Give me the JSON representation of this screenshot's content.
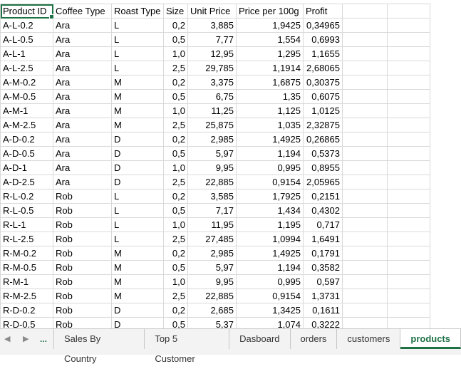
{
  "sheet": {
    "headers": [
      "Product ID",
      "Coffee Type",
      "Roast Type",
      "Size",
      "Unit Price",
      "Price per 100g",
      "Profit"
    ],
    "rows": [
      [
        "A-L-0.2",
        "Ara",
        "L",
        "0,2",
        "3,885",
        "1,9425",
        "0,34965"
      ],
      [
        "A-L-0.5",
        "Ara",
        "L",
        "0,5",
        "7,77",
        "1,554",
        "0,6993"
      ],
      [
        "A-L-1",
        "Ara",
        "L",
        "1,0",
        "12,95",
        "1,295",
        "1,1655"
      ],
      [
        "A-L-2.5",
        "Ara",
        "L",
        "2,5",
        "29,785",
        "1,1914",
        "2,68065"
      ],
      [
        "A-M-0.2",
        "Ara",
        "M",
        "0,2",
        "3,375",
        "1,6875",
        "0,30375"
      ],
      [
        "A-M-0.5",
        "Ara",
        "M",
        "0,5",
        "6,75",
        "1,35",
        "0,6075"
      ],
      [
        "A-M-1",
        "Ara",
        "M",
        "1,0",
        "11,25",
        "1,125",
        "1,0125"
      ],
      [
        "A-M-2.5",
        "Ara",
        "M",
        "2,5",
        "25,875",
        "1,035",
        "2,32875"
      ],
      [
        "A-D-0.2",
        "Ara",
        "D",
        "0,2",
        "2,985",
        "1,4925",
        "0,26865"
      ],
      [
        "A-D-0.5",
        "Ara",
        "D",
        "0,5",
        "5,97",
        "1,194",
        "0,5373"
      ],
      [
        "A-D-1",
        "Ara",
        "D",
        "1,0",
        "9,95",
        "0,995",
        "0,8955"
      ],
      [
        "A-D-2.5",
        "Ara",
        "D",
        "2,5",
        "22,885",
        "0,9154",
        "2,05965"
      ],
      [
        "R-L-0.2",
        "Rob",
        "L",
        "0,2",
        "3,585",
        "1,7925",
        "0,2151"
      ],
      [
        "R-L-0.5",
        "Rob",
        "L",
        "0,5",
        "7,17",
        "1,434",
        "0,4302"
      ],
      [
        "R-L-1",
        "Rob",
        "L",
        "1,0",
        "11,95",
        "1,195",
        "0,717"
      ],
      [
        "R-L-2.5",
        "Rob",
        "L",
        "2,5",
        "27,485",
        "1,0994",
        "1,6491"
      ],
      [
        "R-M-0.2",
        "Rob",
        "M",
        "0,2",
        "2,985",
        "1,4925",
        "0,1791"
      ],
      [
        "R-M-0.5",
        "Rob",
        "M",
        "0,5",
        "5,97",
        "1,194",
        "0,3582"
      ],
      [
        "R-M-1",
        "Rob",
        "M",
        "1,0",
        "9,95",
        "0,995",
        "0,597"
      ],
      [
        "R-M-2.5",
        "Rob",
        "M",
        "2,5",
        "22,885",
        "0,9154",
        "1,3731"
      ],
      [
        "R-D-0.2",
        "Rob",
        "D",
        "0,2",
        "2,685",
        "1,3425",
        "0,1611"
      ],
      [
        "R-D-0.5",
        "Rob",
        "D",
        "0,5",
        "5,37",
        "1,074",
        "0,3222"
      ]
    ]
  },
  "tabbar": {
    "prev_icon": "◀",
    "next_icon": "▶",
    "ellipsis": "...",
    "tabs": [
      "Sales By Country",
      "Top 5 Customer",
      "Dasboard",
      "orders",
      "customers",
      "products"
    ],
    "active_tab": "products"
  },
  "colors": {
    "accent": "#1e7145",
    "grid": "#d9d9d9",
    "tabbar_bg": "#f3f3f3"
  }
}
